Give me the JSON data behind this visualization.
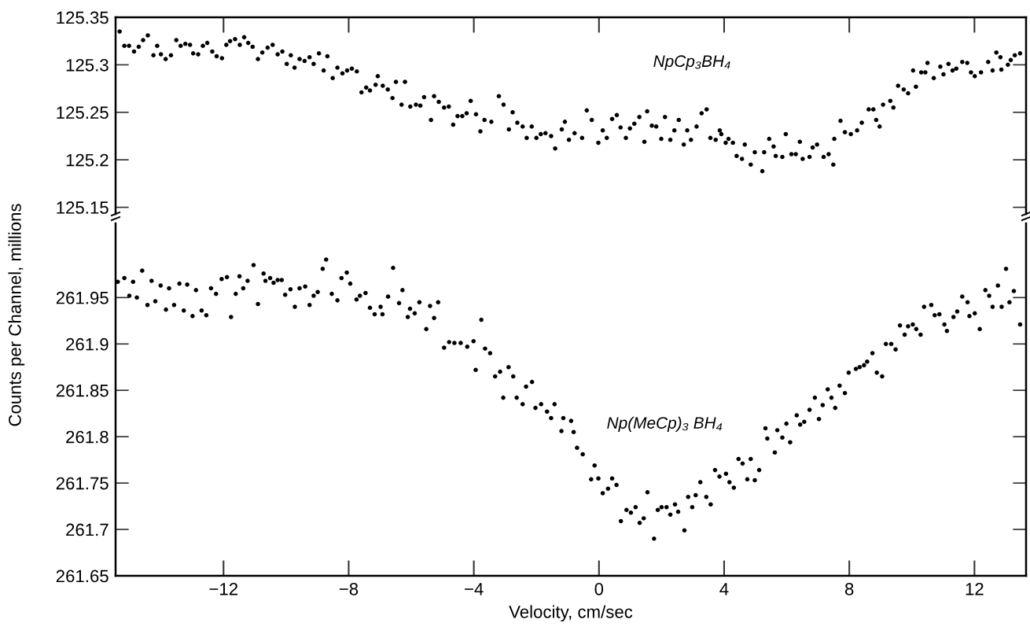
{
  "chart_data": [
    {
      "type": "scatter",
      "xlim": [
        -15.45,
        13.65
      ],
      "xticks": [
        -12,
        -8,
        -4,
        0,
        4,
        8,
        12
      ],
      "ylim": [
        125.143,
        125.35
      ],
      "yticks": [
        125.15,
        125.2,
        125.25,
        125.3,
        125.35
      ],
      "tick_labels": "y",
      "grid": false,
      "legend": false,
      "marker": "circle",
      "series": [
        {
          "name": "NpCp₃BH₄",
          "color": "#000000",
          "x": [
            -15.32,
            -15.17,
            -15.02,
            -14.86,
            -14.71,
            -14.57,
            -14.42,
            -14.24,
            -14.12,
            -14.0,
            -13.85,
            -13.68,
            -13.51,
            -13.37,
            -13.22,
            -13.07,
            -12.97,
            -12.81,
            -12.66,
            -12.52,
            -12.36,
            -12.22,
            -12.05,
            -11.91,
            -11.79,
            -11.63,
            -11.48,
            -11.34,
            -11.21,
            -11.07,
            -10.9,
            -10.76,
            -10.59,
            -10.43,
            -10.27,
            -10.12,
            -9.98,
            -9.85,
            -9.73,
            -9.57,
            -9.41,
            -9.25,
            -9.12,
            -8.95,
            -8.8,
            -8.68,
            -8.51,
            -8.36,
            -8.2,
            -8.05,
            -7.9,
            -7.74,
            -7.59,
            -7.44,
            -7.32,
            -7.14,
            -7.07,
            -6.91,
            -6.75,
            -6.6,
            -6.49,
            -6.31,
            -6.2,
            -6.03,
            -5.85,
            -5.71,
            -5.59,
            -5.37,
            -5.27,
            -5.12,
            -4.95,
            -4.8,
            -4.66,
            -4.52,
            -4.37,
            -4.23,
            -4.1,
            -3.93,
            -3.79,
            -3.66,
            -3.44,
            -3.2,
            -3.05,
            -2.88,
            -2.76,
            -2.61,
            -2.44,
            -2.31,
            -2.15,
            -2.0,
            -1.86,
            -1.71,
            -1.53,
            -1.4,
            -1.19,
            -1.09,
            -0.96,
            -0.78,
            -0.54,
            -0.39,
            -0.23,
            -0.02,
            0.12,
            0.25,
            0.42,
            0.57,
            0.69,
            0.86,
            0.99,
            1.13,
            1.29,
            1.45,
            1.54,
            1.69,
            1.83,
            1.99,
            2.11,
            2.28,
            2.41,
            2.55,
            2.71,
            2.82,
            2.94,
            3.12,
            3.28,
            3.44,
            3.56,
            3.73,
            3.86,
            3.91,
            4.05,
            4.14,
            4.28,
            4.4,
            4.57,
            4.66,
            4.85,
            4.98,
            5.22,
            5.28,
            5.44,
            5.58,
            5.65,
            5.86,
            5.97,
            6.15,
            6.29,
            6.42,
            6.51,
            6.73,
            6.83,
            6.97,
            7.18,
            7.34,
            7.49,
            7.52,
            7.72,
            7.86,
            8.05,
            8.25,
            8.4,
            8.62,
            8.77,
            8.86,
            8.97,
            9.08,
            9.31,
            9.41,
            9.56,
            9.74,
            9.88,
            10.04,
            10.13,
            10.3,
            10.43,
            10.5,
            10.7,
            10.91,
            11.01,
            11.17,
            11.3,
            11.42,
            11.61,
            11.77,
            11.89,
            12.01,
            12.21,
            12.44,
            12.58,
            12.7,
            12.83,
            12.86,
            13.07,
            13.16,
            13.29,
            13.46
          ],
          "values": [
            125.335,
            125.32,
            125.32,
            125.314,
            125.319,
            125.326,
            125.331,
            125.31,
            125.32,
            125.311,
            125.306,
            125.31,
            125.326,
            125.32,
            125.322,
            125.321,
            125.312,
            125.311,
            125.32,
            125.323,
            125.314,
            125.309,
            125.307,
            125.321,
            125.325,
            125.327,
            125.321,
            125.329,
            125.323,
            125.319,
            125.306,
            125.313,
            125.318,
            125.321,
            125.311,
            125.314,
            125.301,
            125.31,
            125.297,
            125.306,
            125.304,
            125.308,
            125.301,
            125.312,
            125.294,
            125.309,
            125.286,
            125.297,
            125.291,
            125.294,
            125.296,
            125.293,
            125.271,
            125.276,
            125.273,
            125.279,
            125.288,
            125.278,
            125.274,
            125.265,
            125.282,
            125.258,
            125.282,
            125.256,
            125.258,
            125.257,
            125.266,
            125.242,
            125.267,
            125.261,
            125.255,
            125.256,
            125.237,
            125.246,
            125.246,
            125.249,
            125.262,
            125.248,
            125.23,
            125.242,
            125.24,
            125.267,
            125.258,
            125.232,
            125.25,
            125.239,
            125.235,
            125.223,
            125.235,
            125.223,
            125.227,
            125.228,
            125.225,
            125.212,
            125.232,
            125.24,
            125.221,
            125.228,
            125.223,
            125.252,
            125.242,
            125.218,
            125.231,
            125.223,
            125.243,
            125.247,
            125.234,
            125.223,
            125.233,
            125.238,
            125.245,
            125.219,
            125.251,
            125.236,
            125.235,
            125.222,
            125.245,
            125.221,
            125.231,
            125.242,
            125.216,
            125.231,
            125.221,
            125.235,
            125.249,
            125.253,
            125.223,
            125.221,
            125.231,
            125.227,
            125.218,
            125.222,
            125.218,
            125.204,
            125.201,
            125.216,
            125.195,
            125.208,
            125.188,
            125.208,
            125.222,
            125.214,
            125.204,
            125.203,
            125.227,
            125.206,
            125.206,
            125.219,
            125.201,
            125.203,
            125.213,
            125.216,
            125.203,
            125.206,
            125.195,
            125.222,
            125.241,
            125.229,
            125.227,
            125.231,
            125.239,
            125.253,
            125.253,
            125.242,
            125.235,
            125.258,
            125.262,
            125.255,
            125.278,
            125.274,
            125.27,
            125.294,
            125.277,
            125.292,
            125.292,
            125.302,
            125.286,
            125.298,
            125.29,
            125.301,
            125.294,
            125.296,
            125.303,
            125.302,
            125.292,
            125.288,
            125.292,
            125.303,
            125.294,
            125.313,
            125.308,
            125.295,
            125.3,
            125.305,
            125.31,
            125.312
          ]
        }
      ]
    },
    {
      "type": "scatter",
      "xlabel": "Velocity, cm/sec",
      "ylabel": "Counts per Channel, millions",
      "xlim": [
        -15.45,
        13.65
      ],
      "xticks": [
        -12,
        -8,
        -4,
        0,
        4,
        8,
        12
      ],
      "ylim": [
        261.65,
        262.03
      ],
      "yticks": [
        261.65,
        261.7,
        261.75,
        261.8,
        261.85,
        261.9,
        261.95
      ],
      "grid": false,
      "legend": false,
      "marker": "circle",
      "series": [
        {
          "name": "Np(MeCp)₃ BH₄",
          "color": "#000000",
          "x": [
            -15.38,
            -15.17,
            -15.01,
            -14.89,
            -14.77,
            -14.6,
            -14.43,
            -14.3,
            -14.18,
            -14.01,
            -13.84,
            -13.74,
            -13.58,
            -13.41,
            -13.27,
            -13.16,
            -12.99,
            -12.88,
            -12.7,
            -12.55,
            -12.4,
            -12.24,
            -12.06,
            -11.89,
            -11.76,
            -11.61,
            -11.49,
            -11.37,
            -11.23,
            -11.04,
            -10.9,
            -10.72,
            -10.66,
            -10.51,
            -10.4,
            -10.27,
            -10.14,
            -10.03,
            -9.86,
            -9.72,
            -9.57,
            -9.39,
            -9.25,
            -9.12,
            -8.99,
            -8.83,
            -8.72,
            -8.54,
            -8.36,
            -8.23,
            -8.06,
            -7.95,
            -7.75,
            -7.64,
            -7.46,
            -7.32,
            -7.17,
            -6.98,
            -6.92,
            -6.74,
            -6.58,
            -6.39,
            -6.28,
            -6.11,
            -6.04,
            -5.89,
            -5.74,
            -5.52,
            -5.4,
            -5.27,
            -5.14,
            -4.95,
            -4.79,
            -4.62,
            -4.42,
            -4.21,
            -4.01,
            -3.94,
            -3.76,
            -3.64,
            -3.48,
            -3.32,
            -3.16,
            -3.06,
            -2.89,
            -2.74,
            -2.63,
            -2.44,
            -2.33,
            -2.14,
            -2.03,
            -1.85,
            -1.66,
            -1.53,
            -1.42,
            -1.2,
            -1.14,
            -0.89,
            -0.81,
            -0.7,
            -0.52,
            -0.25,
            -0.14,
            -0.02,
            0.12,
            0.29,
            0.42,
            0.56,
            0.7,
            0.88,
            1.02,
            1.17,
            1.3,
            1.43,
            1.55,
            1.76,
            1.88,
            2.0,
            2.16,
            2.28,
            2.43,
            2.53,
            2.73,
            2.85,
            2.98,
            3.09,
            3.24,
            3.43,
            3.57,
            3.71,
            3.85,
            4.06,
            4.17,
            4.31,
            4.46,
            4.59,
            4.74,
            4.85,
            4.98,
            5.12,
            5.32,
            5.38,
            5.62,
            5.7,
            5.86,
            5.99,
            6.11,
            6.32,
            6.43,
            6.56,
            6.73,
            6.9,
            7.03,
            7.15,
            7.31,
            7.43,
            7.55,
            7.69,
            7.86,
            7.98,
            8.21,
            8.33,
            8.47,
            8.57,
            8.74,
            8.88,
            9.05,
            9.17,
            9.34,
            9.48,
            9.62,
            9.77,
            9.88,
            10.03,
            10.14,
            10.28,
            10.39,
            10.62,
            10.73,
            10.88,
            11.04,
            11.12,
            11.33,
            11.45,
            11.61,
            11.78,
            11.84,
            12.01,
            12.17,
            12.35,
            12.47,
            12.58,
            12.75,
            12.87,
            13.01,
            13.12,
            13.26,
            13.46
          ],
          "values": [
            261.967,
            261.971,
            261.952,
            261.967,
            261.95,
            261.979,
            261.942,
            261.968,
            261.946,
            261.963,
            261.937,
            261.96,
            261.942,
            261.965,
            261.936,
            261.964,
            261.93,
            261.958,
            261.936,
            261.931,
            261.96,
            261.954,
            261.97,
            261.972,
            261.929,
            261.954,
            261.973,
            261.96,
            261.968,
            261.985,
            261.943,
            261.976,
            261.968,
            261.971,
            261.966,
            261.969,
            261.969,
            261.953,
            261.959,
            261.94,
            261.96,
            261.962,
            261.942,
            261.952,
            261.956,
            261.981,
            261.991,
            261.954,
            261.947,
            261.971,
            261.977,
            261.965,
            261.948,
            261.952,
            261.955,
            261.939,
            261.932,
            261.94,
            261.932,
            261.951,
            261.982,
            261.944,
            261.958,
            261.929,
            261.938,
            261.933,
            261.945,
            261.916,
            261.941,
            261.928,
            261.945,
            261.896,
            261.902,
            261.901,
            261.901,
            261.897,
            261.903,
            261.872,
            261.926,
            261.895,
            261.89,
            261.865,
            261.87,
            261.842,
            261.875,
            261.865,
            261.842,
            261.835,
            261.854,
            261.859,
            261.831,
            261.835,
            261.827,
            261.82,
            261.835,
            261.806,
            261.82,
            261.817,
            261.805,
            261.788,
            261.781,
            261.754,
            261.769,
            261.755,
            261.739,
            261.744,
            261.755,
            261.748,
            261.709,
            261.721,
            261.718,
            261.724,
            261.707,
            261.712,
            261.74,
            261.69,
            261.721,
            261.724,
            261.724,
            261.716,
            261.727,
            261.719,
            261.699,
            261.735,
            261.724,
            261.737,
            261.751,
            261.735,
            261.727,
            261.764,
            261.757,
            261.76,
            261.751,
            261.745,
            261.776,
            261.771,
            261.754,
            261.776,
            261.753,
            261.764,
            261.809,
            261.798,
            261.783,
            261.807,
            261.799,
            261.814,
            261.794,
            261.823,
            261.813,
            261.816,
            261.829,
            261.842,
            261.819,
            261.834,
            261.851,
            261.842,
            261.831,
            261.855,
            261.847,
            261.869,
            261.873,
            261.875,
            261.877,
            261.881,
            261.89,
            261.869,
            261.865,
            261.9,
            261.9,
            261.894,
            261.92,
            261.91,
            261.919,
            261.921,
            261.916,
            261.91,
            261.94,
            261.942,
            261.931,
            261.932,
            261.921,
            261.914,
            261.929,
            261.935,
            261.951,
            261.945,
            261.93,
            261.933,
            261.916,
            261.958,
            261.952,
            261.94,
            261.963,
            261.94,
            261.981,
            261.945,
            261.957,
            261.921
          ]
        }
      ]
    }
  ]
}
